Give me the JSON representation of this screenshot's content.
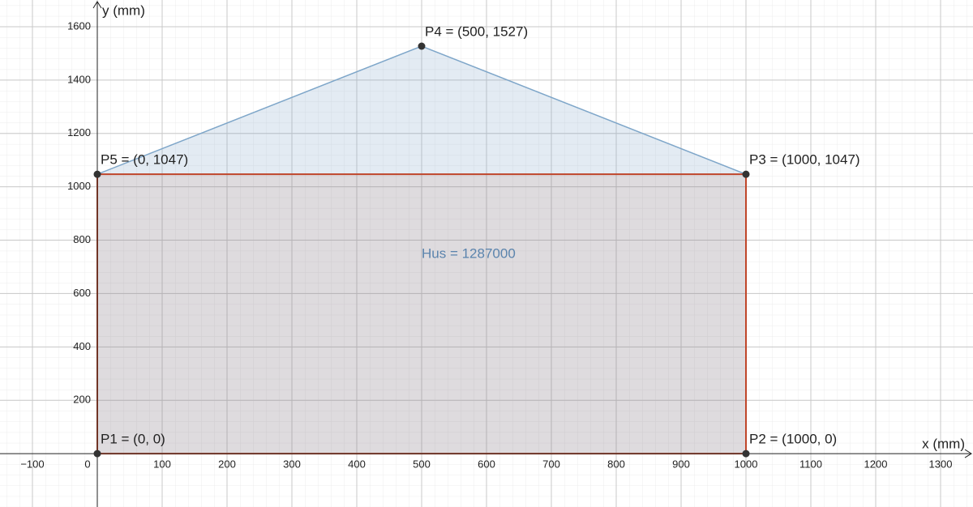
{
  "chart_data": {
    "type": "scatter",
    "x_label": "x (mm)",
    "y_label": "y (mm)",
    "xlim": [
      -150,
      1350
    ],
    "ylim": [
      -200,
      1700
    ],
    "xticks": [
      {
        "value": -100,
        "label": "−100"
      },
      0,
      100,
      200,
      300,
      400,
      500,
      600,
      700,
      800,
      900,
      1000,
      1100,
      1200,
      1300
    ],
    "yticks": [
      200,
      400,
      600,
      800,
      1000,
      1200,
      1400,
      1600
    ],
    "grid": true,
    "points": {
      "x": [
        0,
        1000,
        1000,
        500,
        0
      ],
      "y": [
        0,
        0,
        1047,
        1527,
        1047
      ],
      "labels": [
        "P1 = (0, 0)",
        "P2 = (1000, 0)",
        "P3 = (1000, 1047)",
        "P4 = (500, 1527)",
        "P5 = (0, 1047)"
      ],
      "color": "#333333"
    },
    "roof_color": "#7ea6c9",
    "body_color": "#c0462a",
    "area_label": "Hus = 1287000",
    "area_label_color": "#5b84ad"
  }
}
